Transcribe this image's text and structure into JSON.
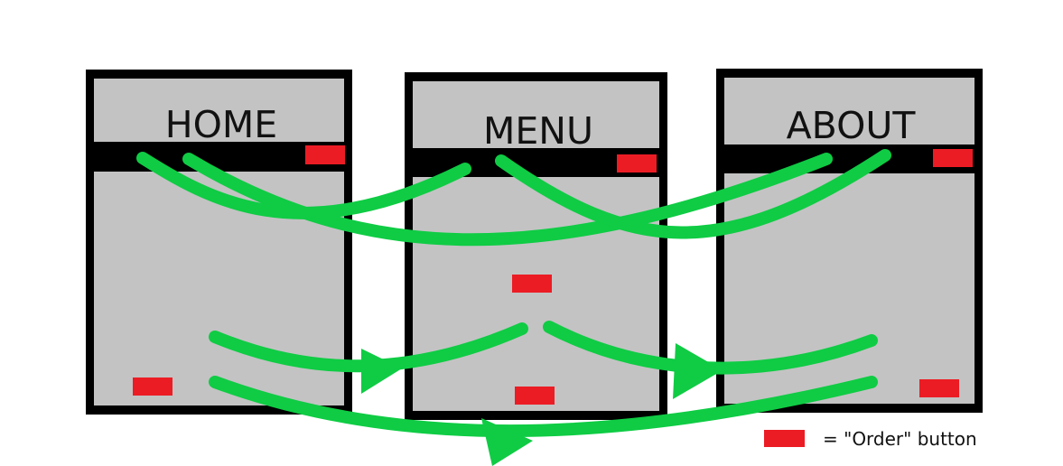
{
  "colors": {
    "background": "#ffffff",
    "page_fill": "#c3c3c3",
    "page_border": "#000000",
    "order_button": "#ec1c24",
    "arrow": "#0fcc44"
  },
  "pages": [
    {
      "id": "home",
      "title": "HOME"
    },
    {
      "id": "menu",
      "title": "MENU"
    },
    {
      "id": "about",
      "title": "ABOUT"
    }
  ],
  "legend": {
    "label": "= \"Order\" button"
  }
}
